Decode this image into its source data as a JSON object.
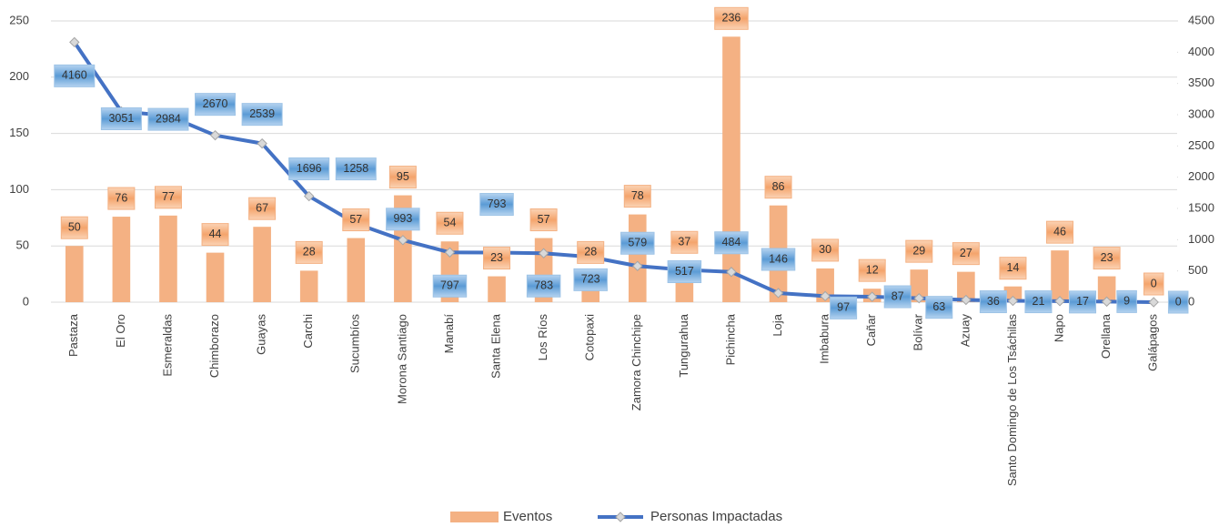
{
  "chart_data": {
    "type": "combo",
    "categories": [
      "Pastaza",
      "El Oro",
      "Esmeraldas",
      "Chimborazo",
      "Guayas",
      "Carchi",
      "Sucumbíos",
      "Morona Santiago",
      "Manabí",
      "Santa Elena",
      "Los Ríos",
      "Cotopaxi",
      "Zamora Chinchipe",
      "Tungurahua",
      "Pichincha",
      "Loja",
      "Imbabura",
      "Cañar",
      "Bolívar",
      "Azuay",
      "Santo Domingo de Los Tsáchilas",
      "Napo",
      "Orellana",
      "Galápagos"
    ],
    "series": [
      {
        "name": "Eventos",
        "type": "bar",
        "color": "#f4b183",
        "values": [
          50,
          76,
          77,
          44,
          67,
          28,
          57,
          95,
          54,
          23,
          57,
          28,
          78,
          37,
          236,
          86,
          30,
          12,
          29,
          27,
          14,
          46,
          23,
          0
        ]
      },
      {
        "name": "Personas Impactadas",
        "type": "line",
        "axis": "y2",
        "color": "#4472c4",
        "values": [
          4160,
          3051,
          2984,
          2670,
          2539,
          1696,
          1258,
          993,
          797,
          793,
          783,
          723,
          579,
          517,
          484,
          146,
          97,
          87,
          63,
          36,
          21,
          17,
          9,
          0
        ]
      }
    ],
    "ylim": [
      0,
      250
    ],
    "yticks": [
      0,
      50,
      100,
      150,
      200,
      250
    ],
    "y2lim": [
      0,
      4500
    ],
    "y2ticks": [
      0,
      500,
      1000,
      1500,
      2000,
      2500,
      3000,
      3500,
      4000,
      4500
    ],
    "grid": true,
    "legend": "bottom"
  }
}
